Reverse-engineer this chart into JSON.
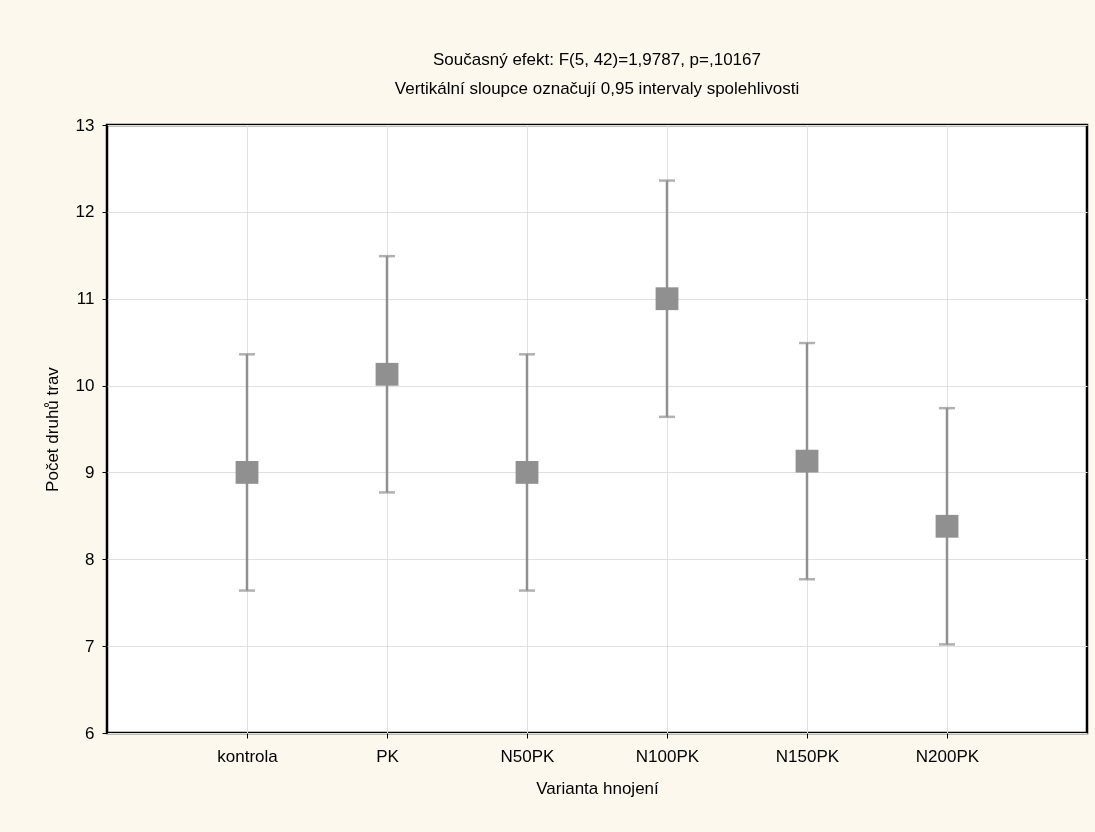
{
  "chart_data": {
    "type": "scatter",
    "title": "Současný efekt: F(5, 42)=1,9787, p=,10167",
    "subtitle": "Vertikální sloupce označují 0,95 intervaly spolehlivosti",
    "xlabel": "Varianta hnojení",
    "ylabel": "Počet druhů trav",
    "categories": [
      "kontrola",
      "PK",
      "N50PK",
      "N100PK",
      "N150PK",
      "N200PK"
    ],
    "values": [
      9.0,
      10.13,
      9.0,
      11.0,
      9.13,
      8.38
    ],
    "errors": [
      1.36,
      1.36,
      1.36,
      1.36,
      1.36,
      1.36
    ],
    "color": "#909090",
    "marker": "square",
    "grid": true,
    "ylim": [
      6,
      13
    ],
    "yticks": [
      6,
      7,
      8,
      9,
      10,
      11,
      12,
      13
    ]
  }
}
